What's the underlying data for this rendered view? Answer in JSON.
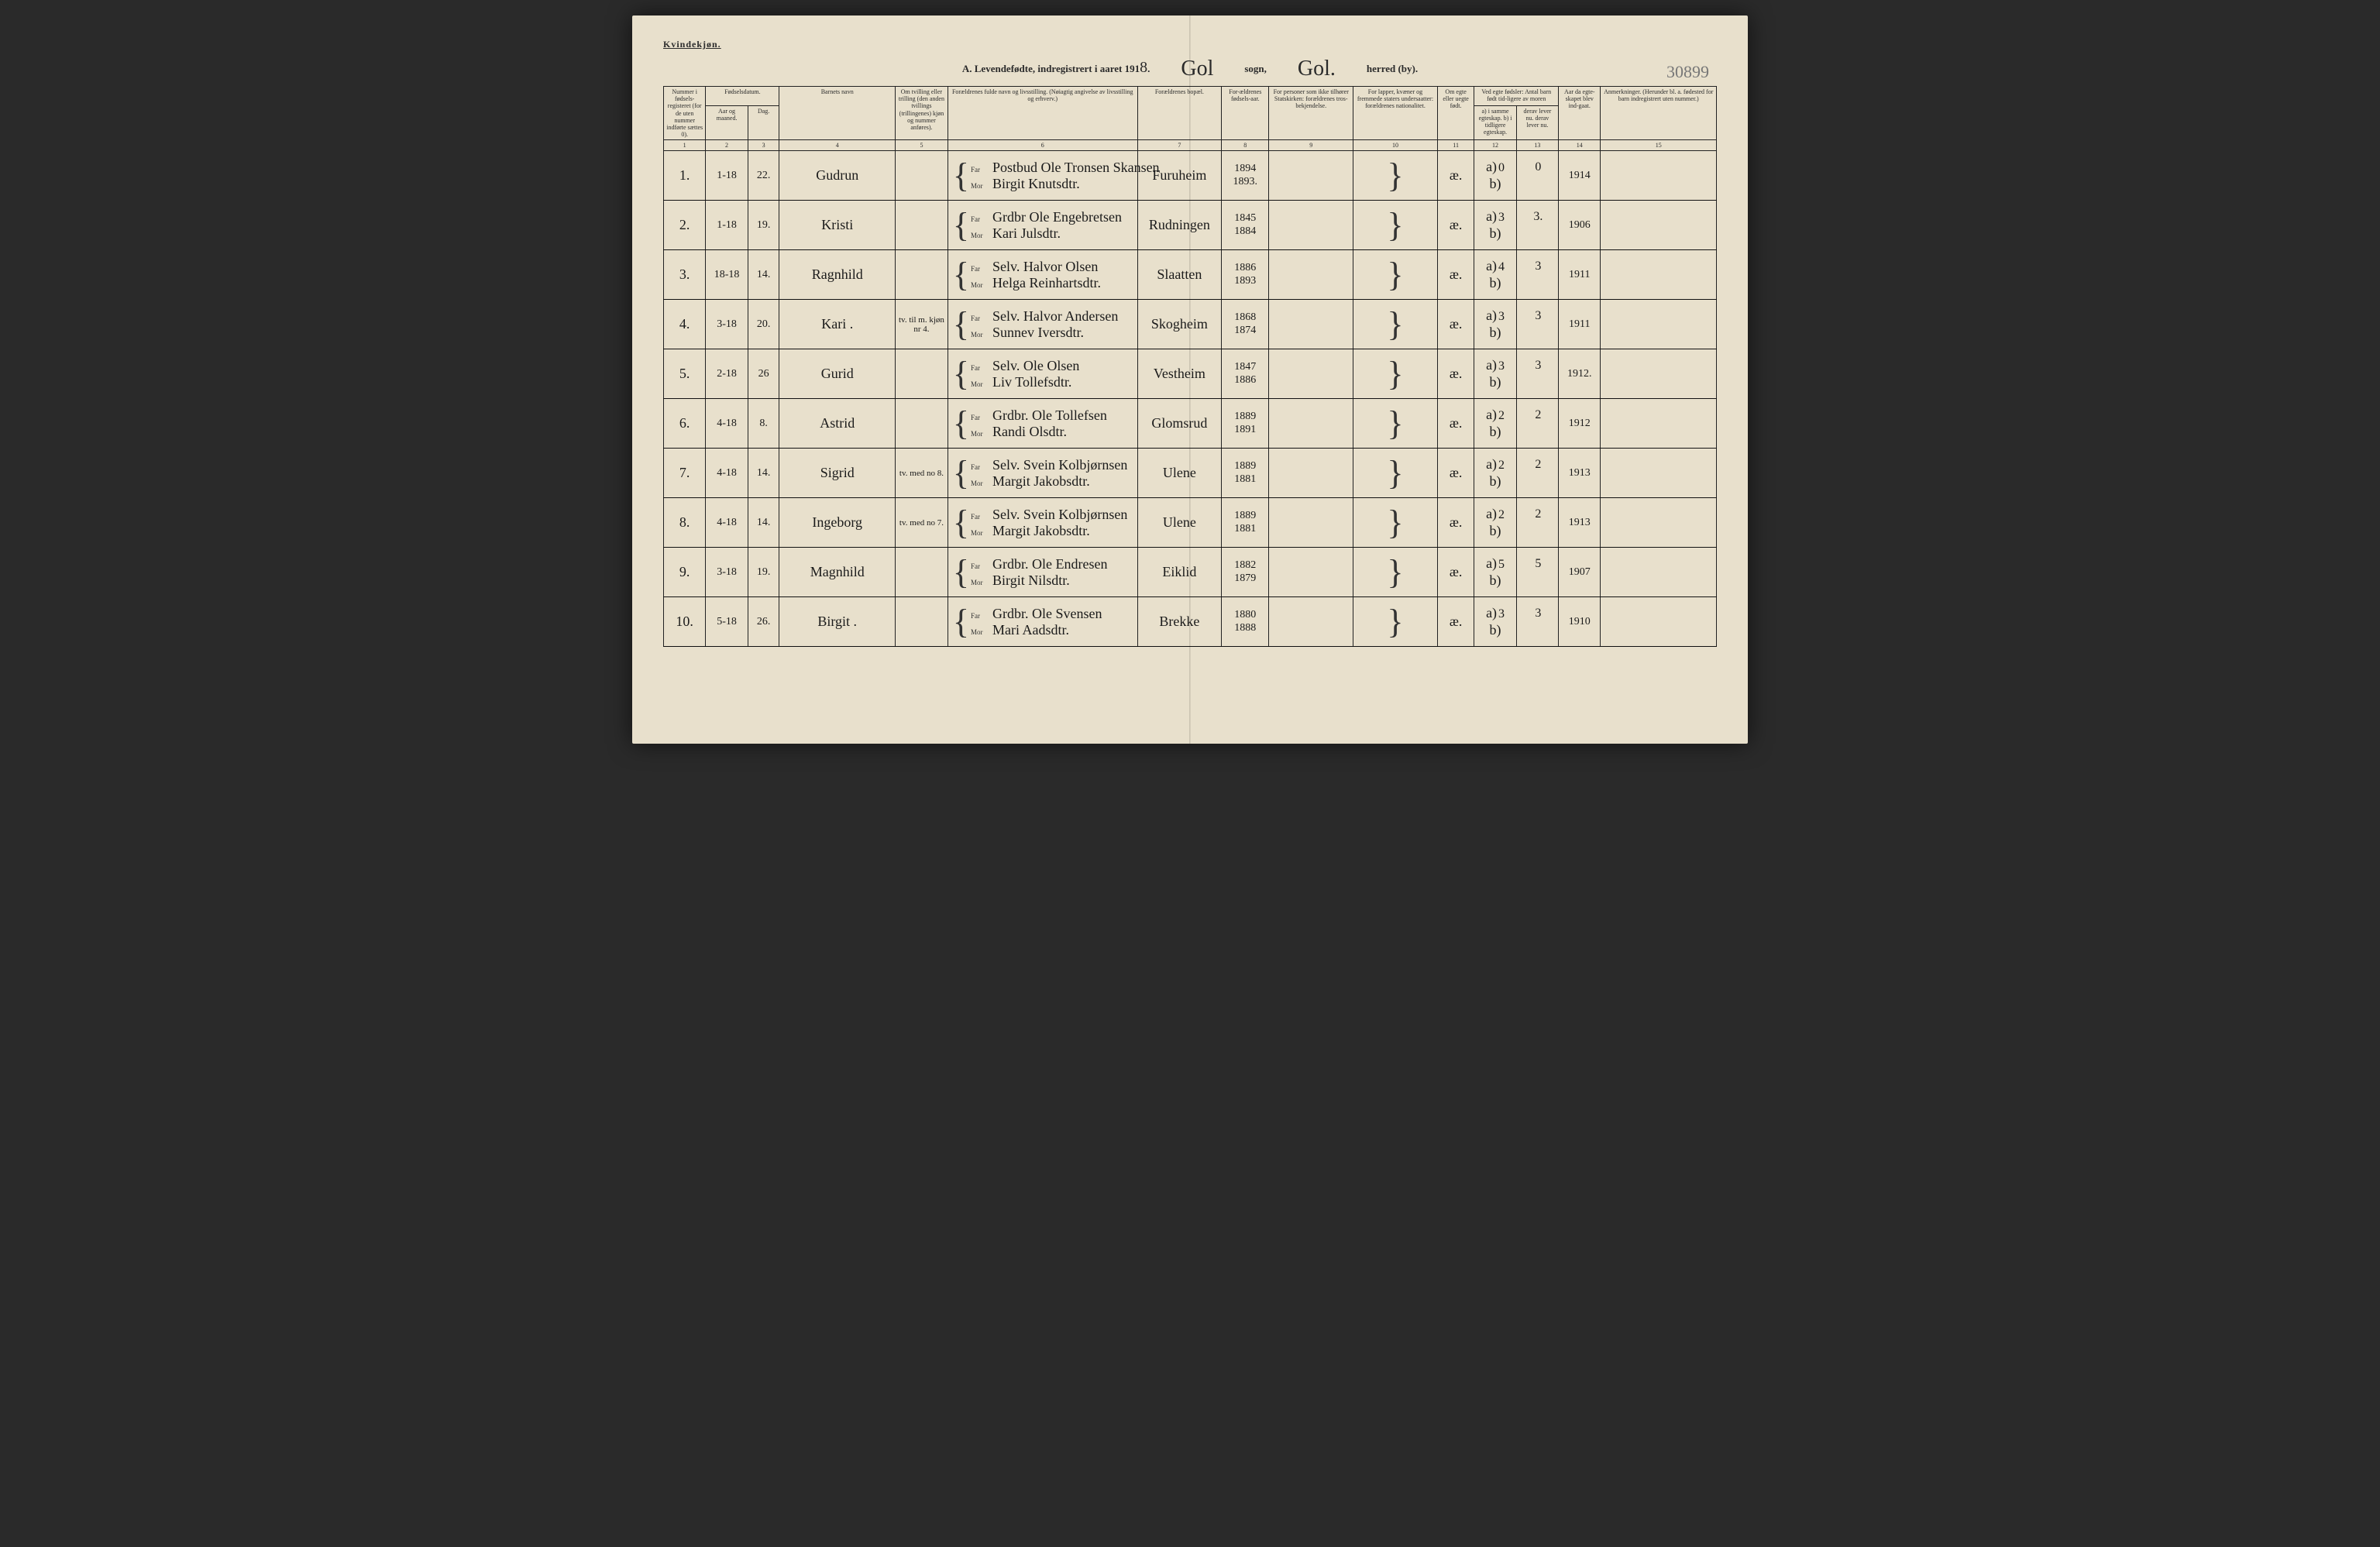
{
  "page": {
    "gender_heading": "Kvindekjøn.",
    "title_prefix": "A. Levendefødte, indregistrert i aaret 191",
    "year_digit": "8",
    "period": ".",
    "sogn_value": "Gol",
    "sogn_label": "sogn,",
    "herred_value": "Gol.",
    "herred_label": "herred (by).",
    "page_number": "30899"
  },
  "headers": {
    "c1": "Nummer i fødsels-registeret (for de uten nummer indførte sættes 0).",
    "c2_top": "Fødselsdatum.",
    "c2": "Aar og maaned.",
    "c3": "Dag.",
    "c4": "Barnets navn",
    "c5": "Om tvilling eller trilling (den anden tvillings (trillingenes) kjøn og nummer anføres).",
    "c6": "Forældrenes fulde navn og livsstilling. (Nøiagtig angivelse av livsstilling og erhverv.)",
    "c7": "Forældrenes bopæl.",
    "c8": "For-ældrenes fødsels-aar.",
    "c9": "For personer som ikke tilhører Statskirken: forældrenes tros-bekjendelse.",
    "c10": "For lapper, kvæner og fremmede staters undersaatter: forældrenes nationalitet.",
    "c11": "Om egte eller uegte født.",
    "c12_top": "Ved egte fødsler: Antal barn født tid-ligere av moren",
    "c12": "a) i samme egteskap. b) i tidligere egteskap.",
    "c13": "derav lever nu. derav lever nu.",
    "c14": "Aar da egte-skapet blev ind-gaat.",
    "c15": "Anmerkninger. (Herunder bl. a. fødested for barn indregistrert uten nummer.)"
  },
  "colnums": [
    "1",
    "2",
    "3",
    "4",
    "5",
    "6",
    "7",
    "8",
    "9",
    "10",
    "11",
    "12",
    "13",
    "14",
    "15"
  ],
  "labels": {
    "far": "Far",
    "mor": "Mor",
    "a": "a)",
    "b": "b)"
  },
  "rows": [
    {
      "n": "1.",
      "ym": "1-18",
      "day": "22.",
      "name": "Gudrun",
      "twin": "",
      "far": "Postbud Ole Tronsen Skansen",
      "mor": "Birgit Knutsdtr.",
      "bopael": "Furuheim",
      "fy_far": "1894",
      "fy_mor": "1893.",
      "c9": "",
      "c10": "",
      "egte": "æ.",
      "a": "0",
      "lever_a": "0",
      "aar": "1914",
      "anm": ""
    },
    {
      "n": "2.",
      "ym": "1-18",
      "day": "19.",
      "name": "Kristi",
      "twin": "",
      "far": "Grdbr Ole Engebretsen",
      "mor": "Kari Julsdtr.",
      "bopael": "Rudningen",
      "fy_far": "1845",
      "fy_mor": "1884",
      "c9": "",
      "c10": "",
      "egte": "æ.",
      "a": "3",
      "lever_a": "3.",
      "aar": "1906",
      "anm": ""
    },
    {
      "n": "3.",
      "ym": "18-18",
      "day": "14.",
      "name": "Ragnhild",
      "twin": "",
      "far": "Selv. Halvor Olsen",
      "mor": "Helga Reinhartsdtr.",
      "bopael": "Slaatten",
      "fy_far": "1886",
      "fy_mor": "1893",
      "c9": "",
      "c10": "",
      "egte": "æ.",
      "a": "4",
      "lever_a": "3",
      "aar": "1911",
      "anm": ""
    },
    {
      "n": "4.",
      "ym": "3-18",
      "day": "20.",
      "name": "Kari .",
      "twin": "tv. til m. kjøn nr 4.",
      "far": "Selv. Halvor Andersen",
      "mor": "Sunnev Iversdtr.",
      "bopael": "Skogheim",
      "fy_far": "1868",
      "fy_mor": "1874",
      "c9": "",
      "c10": "",
      "egte": "æ.",
      "a": "3",
      "lever_a": "3",
      "aar": "1911",
      "anm": ""
    },
    {
      "n": "5.",
      "ym": "2-18",
      "day": "26",
      "name": "Gurid",
      "twin": "",
      "far": "Selv. Ole Olsen",
      "mor": "Liv Tollefsdtr.",
      "bopael": "Vestheim",
      "fy_far": "1847",
      "fy_mor": "1886",
      "c9": "",
      "c10": "",
      "egte": "æ.",
      "a": "3",
      "lever_a": "3",
      "aar": "1912.",
      "anm": ""
    },
    {
      "n": "6.",
      "ym": "4-18",
      "day": "8.",
      "name": "Astrid",
      "twin": "",
      "far": "Grdbr. Ole Tollefsen",
      "mor": "Randi Olsdtr.",
      "bopael": "Glomsrud",
      "fy_far": "1889",
      "fy_mor": "1891",
      "c9": "",
      "c10": "",
      "egte": "æ.",
      "a": "2",
      "lever_a": "2",
      "aar": "1912",
      "anm": ""
    },
    {
      "n": "7.",
      "ym": "4-18",
      "day": "14.",
      "name": "Sigrid",
      "twin": "tv. med no 8.",
      "far": "Selv. Svein Kolbjørnsen",
      "mor": "Margit Jakobsdtr.",
      "bopael": "Ulene",
      "fy_far": "1889",
      "fy_mor": "1881",
      "c9": "",
      "c10": "",
      "egte": "æ.",
      "a": "2",
      "lever_a": "2",
      "aar": "1913",
      "anm": ""
    },
    {
      "n": "8.",
      "ym": "4-18",
      "day": "14.",
      "name": "Ingeborg",
      "twin": "tv. med no 7.",
      "far": "Selv. Svein Kolbjørnsen",
      "mor": "Margit Jakobsdtr.",
      "bopael": "Ulene",
      "fy_far": "1889",
      "fy_mor": "1881",
      "c9": "",
      "c10": "",
      "egte": "æ.",
      "a": "2",
      "lever_a": "2",
      "aar": "1913",
      "anm": ""
    },
    {
      "n": "9.",
      "ym": "3-18",
      "day": "19.",
      "name": "Magnhild",
      "twin": "",
      "far": "Grdbr. Ole Endresen",
      "mor": "Birgit Nilsdtr.",
      "bopael": "Eiklid",
      "fy_far": "1882",
      "fy_mor": "1879",
      "c9": "",
      "c10": "",
      "egte": "æ.",
      "a": "5",
      "lever_a": "5",
      "aar": "1907",
      "anm": ""
    },
    {
      "n": "10.",
      "ym": "5-18",
      "day": "26.",
      "name": "Birgit .",
      "twin": "",
      "far": "Grdbr. Ole Svensen",
      "mor": "Mari Aadsdtr.",
      "bopael": "Brekke",
      "fy_far": "1880",
      "fy_mor": "1888",
      "c9": "",
      "c10": "",
      "egte": "æ.",
      "a": "3",
      "lever_a": "3",
      "aar": "1910",
      "anm": ""
    }
  ],
  "colors": {
    "paper": "#e8e0cc",
    "ink": "#1a1a1a",
    "rule": "#222222",
    "background": "#2a2a2a"
  }
}
